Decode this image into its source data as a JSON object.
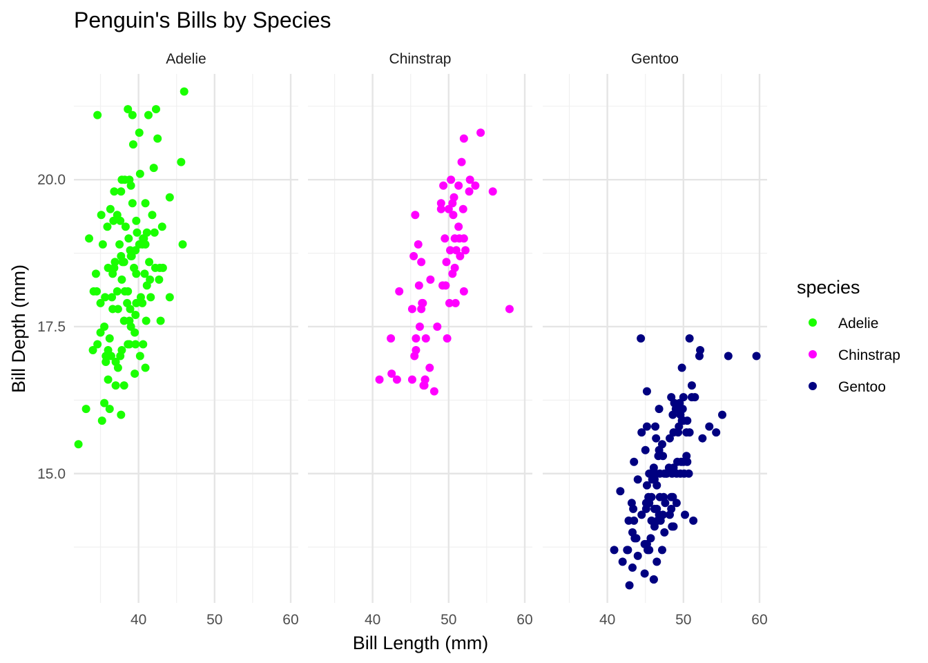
{
  "chart_data": {
    "type": "scatter",
    "title": "Penguin's Bills by Species",
    "xlabel": "Bill Length (mm)",
    "ylabel": "Bill Depth (mm)",
    "xlim": [
      31.5,
      61.0
    ],
    "ylim": [
      12.8,
      21.8
    ],
    "x_ticks": [
      40,
      50,
      60
    ],
    "x_tick_labels": [
      "40",
      "50",
      "60"
    ],
    "y_ticks": [
      15.0,
      17.5,
      20.0
    ],
    "y_tick_labels": [
      "15.0",
      "17.5",
      "20.0"
    ],
    "grid": true,
    "facet_by": "species",
    "legend": {
      "title": "species",
      "placement": "right",
      "entries": [
        "Adelie",
        "Chinstrap",
        "Gentoo"
      ]
    },
    "series": [
      {
        "name": "Adelie",
        "color": "#1aff00",
        "points": [
          [
            32.1,
            15.5
          ],
          [
            33.1,
            16.1
          ],
          [
            33.5,
            19.0
          ],
          [
            34.0,
            17.1
          ],
          [
            34.1,
            18.1
          ],
          [
            34.4,
            18.4
          ],
          [
            34.5,
            18.1
          ],
          [
            34.6,
            21.1
          ],
          [
            34.6,
            17.2
          ],
          [
            35.0,
            17.9
          ],
          [
            35.1,
            19.4
          ],
          [
            35.2,
            15.9
          ],
          [
            35.3,
            18.9
          ],
          [
            35.5,
            16.2
          ],
          [
            35.5,
            17.5
          ],
          [
            35.6,
            18.0
          ],
          [
            35.7,
            16.9
          ],
          [
            35.7,
            17.0
          ],
          [
            35.9,
            19.2
          ],
          [
            36.0,
            18.5
          ],
          [
            36.0,
            17.1
          ],
          [
            36.0,
            16.6
          ],
          [
            36.2,
            17.3
          ],
          [
            36.2,
            16.1
          ],
          [
            36.3,
            19.5
          ],
          [
            36.4,
            17.0
          ],
          [
            36.5,
            18.0
          ],
          [
            36.6,
            17.8
          ],
          [
            36.6,
            18.4
          ],
          [
            36.7,
            19.3
          ],
          [
            36.8,
            18.5
          ],
          [
            36.9,
            18.6
          ],
          [
            37.0,
            16.9
          ],
          [
            37.0,
            16.5
          ],
          [
            37.2,
            18.1
          ],
          [
            37.2,
            19.4
          ],
          [
            37.3,
            17.8
          ],
          [
            37.3,
            16.8
          ],
          [
            37.5,
            18.9
          ],
          [
            37.6,
            17.0
          ],
          [
            37.6,
            19.3
          ],
          [
            37.7,
            16.0
          ],
          [
            37.7,
            18.7
          ],
          [
            37.8,
            17.1
          ],
          [
            37.8,
            18.3
          ],
          [
            37.8,
            20.0
          ],
          [
            37.9,
            18.6
          ],
          [
            38.1,
            17.6
          ],
          [
            38.1,
            18.6
          ],
          [
            38.1,
            16.5
          ],
          [
            38.2,
            20.0
          ],
          [
            38.3,
            19.2
          ],
          [
            38.5,
            17.9
          ],
          [
            38.6,
            17.2
          ],
          [
            38.6,
            21.2
          ],
          [
            38.7,
            19.0
          ],
          [
            38.8,
            20.0
          ],
          [
            38.8,
            17.6
          ],
          [
            38.8,
            17.2
          ],
          [
            38.9,
            18.8
          ],
          [
            38.9,
            17.8
          ],
          [
            39.0,
            18.7
          ],
          [
            39.0,
            17.5
          ],
          [
            39.1,
            18.7
          ],
          [
            39.2,
            21.1
          ],
          [
            39.2,
            19.6
          ],
          [
            39.3,
            20.6
          ],
          [
            39.5,
            16.7
          ],
          [
            39.5,
            17.4
          ],
          [
            39.6,
            18.8
          ],
          [
            39.6,
            17.7
          ],
          [
            39.6,
            17.2
          ],
          [
            39.7,
            18.4
          ],
          [
            39.7,
            17.9
          ],
          [
            39.8,
            19.1
          ],
          [
            40.1,
            18.9
          ],
          [
            40.2,
            17.0
          ],
          [
            40.2,
            20.1
          ],
          [
            40.3,
            18.0
          ],
          [
            40.5,
            17.9
          ],
          [
            40.5,
            18.9
          ],
          [
            40.6,
            19.0
          ],
          [
            40.6,
            17.2
          ],
          [
            40.7,
            19.0
          ],
          [
            40.8,
            18.4
          ],
          [
            40.9,
            16.8
          ],
          [
            40.9,
            18.9
          ],
          [
            41.1,
            18.2
          ],
          [
            41.1,
            19.1
          ],
          [
            41.3,
            21.1
          ],
          [
            41.4,
            18.6
          ],
          [
            41.5,
            18.3
          ],
          [
            41.6,
            18.0
          ],
          [
            41.8,
            19.4
          ],
          [
            42.0,
            20.2
          ],
          [
            42.1,
            19.1
          ],
          [
            42.2,
            18.5
          ],
          [
            42.3,
            21.2
          ],
          [
            42.5,
            20.7
          ],
          [
            42.7,
            18.3
          ],
          [
            42.8,
            18.5
          ],
          [
            42.9,
            17.6
          ],
          [
            43.1,
            19.2
          ],
          [
            43.2,
            18.5
          ],
          [
            44.1,
            19.7
          ],
          [
            44.1,
            18.0
          ],
          [
            45.6,
            20.3
          ],
          [
            45.8,
            18.9
          ],
          [
            46.0,
            21.5
          ],
          [
            40.1,
            20.8
          ],
          [
            39.0,
            19.9
          ],
          [
            36.8,
            19.8
          ],
          [
            38.2,
            18.1
          ],
          [
            37.7,
            19.8
          ],
          [
            39.4,
            18.5
          ],
          [
            40.9,
            19.6
          ],
          [
            38.6,
            18.1
          ],
          [
            39.7,
            19.3
          ],
          [
            41.0,
            17.6
          ],
          [
            35.0,
            17.4
          ]
        ]
      },
      {
        "name": "Chinstrap",
        "color": "#ff00ff",
        "points": [
          [
            40.9,
            16.6
          ],
          [
            42.4,
            17.3
          ],
          [
            42.5,
            16.7
          ],
          [
            43.2,
            16.6
          ],
          [
            43.5,
            18.1
          ],
          [
            45.2,
            17.8
          ],
          [
            45.2,
            16.6
          ],
          [
            45.4,
            18.7
          ],
          [
            45.5,
            17.0
          ],
          [
            45.6,
            19.4
          ],
          [
            45.7,
            17.3
          ],
          [
            45.7,
            17.1
          ],
          [
            46.0,
            18.9
          ],
          [
            46.1,
            18.2
          ],
          [
            46.2,
            17.5
          ],
          [
            46.4,
            17.8
          ],
          [
            46.4,
            18.6
          ],
          [
            46.5,
            17.9
          ],
          [
            46.6,
            17.9
          ],
          [
            46.7,
            16.5
          ],
          [
            46.8,
            16.5
          ],
          [
            46.9,
            16.6
          ],
          [
            47.0,
            17.3
          ],
          [
            47.5,
            16.8
          ],
          [
            47.6,
            18.3
          ],
          [
            48.1,
            16.4
          ],
          [
            48.5,
            17.5
          ],
          [
            49.0,
            19.5
          ],
          [
            49.2,
            18.2
          ],
          [
            49.3,
            19.9
          ],
          [
            49.5,
            19.0
          ],
          [
            49.6,
            18.2
          ],
          [
            49.7,
            18.6
          ],
          [
            49.8,
            17.3
          ],
          [
            50.0,
            19.5
          ],
          [
            50.1,
            17.9
          ],
          [
            50.2,
            18.8
          ],
          [
            50.3,
            20.0
          ],
          [
            50.5,
            18.4
          ],
          [
            50.5,
            19.6
          ],
          [
            50.6,
            19.4
          ],
          [
            50.7,
            19.7
          ],
          [
            50.8,
            18.5
          ],
          [
            50.9,
            17.9
          ],
          [
            51.0,
            18.8
          ],
          [
            51.3,
            19.9
          ],
          [
            51.3,
            19.2
          ],
          [
            51.4,
            19.0
          ],
          [
            51.5,
            18.7
          ],
          [
            51.7,
            20.3
          ],
          [
            51.9,
            19.5
          ],
          [
            52.0,
            18.1
          ],
          [
            52.0,
            19.0
          ],
          [
            52.0,
            20.7
          ],
          [
            52.2,
            18.8
          ],
          [
            52.7,
            19.8
          ],
          [
            52.8,
            20.0
          ],
          [
            53.5,
            19.9
          ],
          [
            54.2,
            20.8
          ],
          [
            55.8,
            19.8
          ],
          [
            58.0,
            17.8
          ],
          [
            46.9,
            16.6
          ],
          [
            50.8,
            19.0
          ],
          [
            49.0,
            19.6
          ]
        ]
      },
      {
        "name": "Gentoo",
        "color": "#000080",
        "points": [
          [
            40.9,
            13.7
          ],
          [
            41.7,
            14.7
          ],
          [
            42.0,
            13.5
          ],
          [
            42.6,
            13.7
          ],
          [
            42.7,
            13.7
          ],
          [
            42.8,
            14.2
          ],
          [
            42.9,
            13.1
          ],
          [
            43.2,
            14.5
          ],
          [
            43.3,
            14.0
          ],
          [
            43.3,
            13.4
          ],
          [
            43.4,
            14.4
          ],
          [
            43.5,
            14.2
          ],
          [
            43.5,
            15.2
          ],
          [
            43.6,
            13.9
          ],
          [
            43.8,
            13.9
          ],
          [
            44.0,
            13.6
          ],
          [
            44.4,
            17.3
          ],
          [
            44.5,
            14.3
          ],
          [
            44.5,
            15.7
          ],
          [
            44.9,
            13.3
          ],
          [
            44.9,
            13.8
          ],
          [
            45.0,
            15.4
          ],
          [
            45.1,
            14.5
          ],
          [
            45.1,
            14.4
          ],
          [
            45.2,
            13.8
          ],
          [
            45.2,
            14.8
          ],
          [
            45.2,
            16.4
          ],
          [
            45.2,
            15.8
          ],
          [
            45.3,
            13.7
          ],
          [
            45.4,
            14.6
          ],
          [
            45.5,
            13.7
          ],
          [
            45.5,
            14.5
          ],
          [
            45.5,
            15.0
          ],
          [
            45.7,
            13.9
          ],
          [
            45.8,
            14.2
          ],
          [
            45.8,
            14.6
          ],
          [
            46.1,
            13.2
          ],
          [
            46.1,
            15.1
          ],
          [
            46.2,
            14.1
          ],
          [
            46.2,
            14.9
          ],
          [
            46.2,
            14.4
          ],
          [
            46.3,
            15.8
          ],
          [
            46.4,
            15.0
          ],
          [
            46.4,
            15.6
          ],
          [
            46.5,
            14.8
          ],
          [
            46.5,
            14.4
          ],
          [
            46.5,
            13.5
          ],
          [
            46.6,
            14.2
          ],
          [
            46.7,
            15.3
          ],
          [
            46.8,
            15.4
          ],
          [
            46.8,
            14.3
          ],
          [
            46.8,
            16.1
          ],
          [
            46.9,
            14.6
          ],
          [
            47.2,
            13.7
          ],
          [
            47.2,
            15.5
          ],
          [
            47.3,
            15.3
          ],
          [
            47.4,
            14.6
          ],
          [
            47.5,
            14.0
          ],
          [
            47.5,
            15.0
          ],
          [
            47.6,
            14.5
          ],
          [
            47.7,
            15.0
          ],
          [
            47.8,
            15.0
          ],
          [
            48.1,
            15.1
          ],
          [
            48.2,
            14.3
          ],
          [
            48.2,
            15.6
          ],
          [
            48.4,
            14.6
          ],
          [
            48.4,
            14.4
          ],
          [
            48.4,
            16.3
          ],
          [
            48.5,
            14.1
          ],
          [
            48.5,
            15.0
          ],
          [
            48.6,
            16.0
          ],
          [
            48.7,
            14.1
          ],
          [
            48.7,
            15.7
          ],
          [
            48.7,
            15.1
          ],
          [
            48.8,
            16.2
          ],
          [
            49.0,
            16.1
          ],
          [
            49.1,
            14.5
          ],
          [
            49.1,
            15.0
          ],
          [
            49.2,
            15.2
          ],
          [
            49.3,
            15.7
          ],
          [
            49.4,
            15.8
          ],
          [
            49.5,
            16.1
          ],
          [
            49.5,
            16.2
          ],
          [
            49.6,
            15.0
          ],
          [
            49.6,
            16.0
          ],
          [
            49.8,
            15.9
          ],
          [
            49.8,
            16.8
          ],
          [
            49.9,
            16.1
          ],
          [
            50.0,
            15.2
          ],
          [
            50.0,
            15.9
          ],
          [
            50.0,
            16.3
          ],
          [
            50.1,
            15.0
          ],
          [
            50.2,
            14.3
          ],
          [
            50.4,
            15.7
          ],
          [
            50.4,
            15.3
          ],
          [
            50.5,
            15.9
          ],
          [
            50.5,
            15.2
          ],
          [
            50.7,
            15.0
          ],
          [
            50.8,
            17.3
          ],
          [
            50.8,
            15.7
          ],
          [
            51.1,
            16.5
          ],
          [
            51.1,
            16.3
          ],
          [
            51.3,
            14.2
          ],
          [
            51.5,
            16.3
          ],
          [
            52.1,
            17.0
          ],
          [
            52.2,
            17.1
          ],
          [
            52.5,
            15.6
          ],
          [
            53.4,
            15.8
          ],
          [
            54.3,
            15.7
          ],
          [
            55.1,
            16.0
          ],
          [
            55.9,
            17.0
          ],
          [
            59.6,
            17.0
          ],
          [
            46.1,
            13.2
          ],
          [
            47.0,
            14.2
          ],
          [
            49.7,
            15.2
          ],
          [
            48.6,
            14.6
          ],
          [
            45.9,
            14.9
          ],
          [
            46.9,
            15.0
          ],
          [
            47.3,
            14.3
          ],
          [
            44.0,
            14.9
          ]
        ]
      }
    ]
  }
}
